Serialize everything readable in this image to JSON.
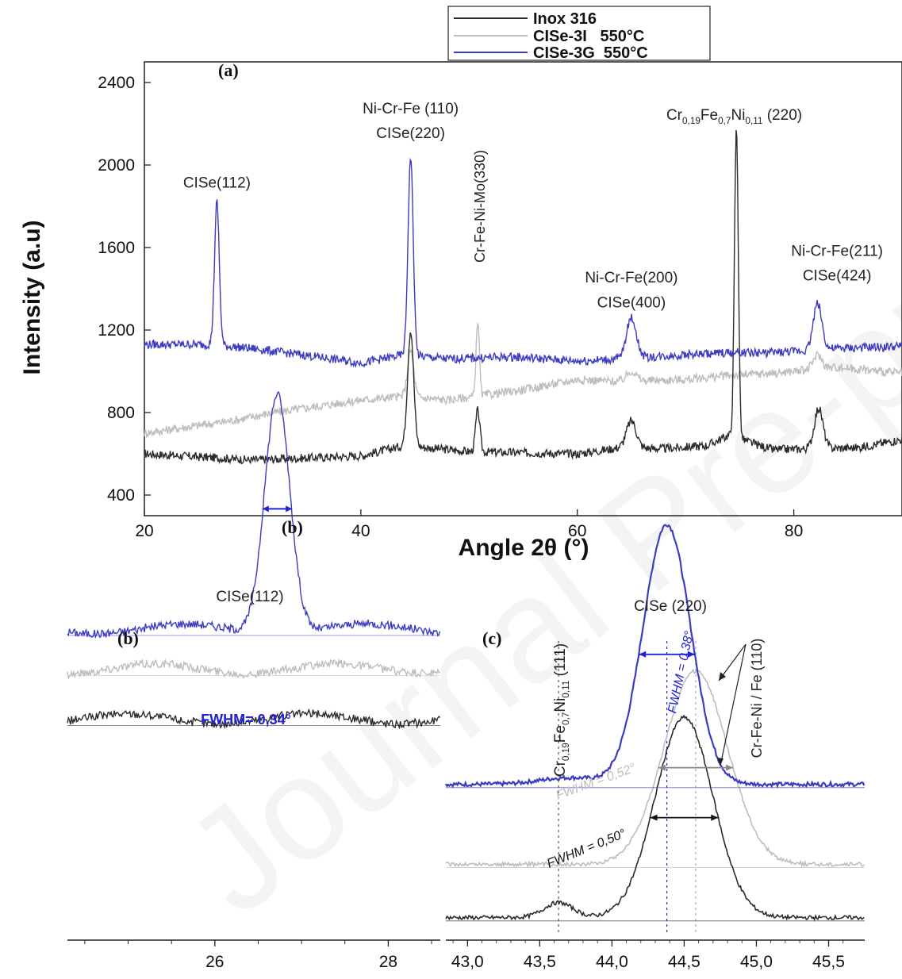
{
  "colors": {
    "inox": "#2b2b2b",
    "cise3i": "#bdbdbd",
    "cise3g": "#3c3cc0",
    "fwhm_blue": "#2222d6",
    "fwhm_gray": "#bdbdbd",
    "fwhm_black": "#111111"
  },
  "watermark": "Journal Pre-proof",
  "chart_data": [
    {
      "type": "line",
      "panel_label": "(a)",
      "xlabel": "Angle 2θ (°)",
      "ylabel": "Intensity (a.u)",
      "xlim": [
        20,
        90
      ],
      "ylim": [
        300,
        2500
      ],
      "xticks": [
        20,
        40,
        60,
        80
      ],
      "yticks": [
        400,
        800,
        1200,
        1600,
        2000,
        2400
      ],
      "legend": {
        "placement": "top-right",
        "entries": [
          "Inox 316",
          "CISe-3I   550°C",
          "CISe-3G  550°C"
        ]
      },
      "series": [
        {
          "name": "Inox 316",
          "color": "#2b2b2b",
          "baseline": [
            [
              20,
              600
            ],
            [
              30,
              570
            ],
            [
              40,
              590
            ],
            [
              44,
              640
            ],
            [
              50,
              610
            ],
            [
              60,
              600
            ],
            [
              64,
              630
            ],
            [
              68,
              625
            ],
            [
              72,
              640
            ],
            [
              74,
              690
            ],
            [
              78,
              620
            ],
            [
              86,
              630
            ],
            [
              90,
              670
            ]
          ],
          "peaks": [
            [
              44.6,
              1200,
              0.28
            ],
            [
              50.8,
              810,
              0.2
            ],
            [
              65.0,
              760,
              0.45
            ],
            [
              74.7,
              2180,
              0.18
            ],
            [
              82.3,
              820,
              0.4
            ]
          ]
        },
        {
          "name": "CISe-3I 550°C",
          "color": "#bdbdbd",
          "baseline": [
            [
              20,
              700
            ],
            [
              28,
              760
            ],
            [
              32,
              800
            ],
            [
              36,
              830
            ],
            [
              40,
              860
            ],
            [
              44,
              880
            ],
            [
              48,
              860
            ],
            [
              55,
              910
            ],
            [
              60,
              960
            ],
            [
              64,
              950
            ],
            [
              70,
              960
            ],
            [
              74,
              980
            ],
            [
              78,
              990
            ],
            [
              84,
              1020
            ],
            [
              90,
              990
            ]
          ],
          "peaks": [
            [
              44.6,
              1100,
              0.28
            ],
            [
              50.8,
              1250,
              0.15
            ],
            [
              65.0,
              1000,
              0.45
            ],
            [
              82.2,
              1080,
              0.4
            ]
          ]
        },
        {
          "name": "CISe-3G 550°C",
          "color": "#3c3cc0",
          "baseline": [
            [
              20,
              1130
            ],
            [
              26,
              1130
            ],
            [
              30,
              1110
            ],
            [
              36,
              1070
            ],
            [
              40,
              1040
            ],
            [
              44,
              1080
            ],
            [
              48,
              1060
            ],
            [
              54,
              1070
            ],
            [
              60,
              1050
            ],
            [
              64,
              1060
            ],
            [
              70,
              1080
            ],
            [
              74,
              1090
            ],
            [
              78,
              1090
            ],
            [
              84,
              1110
            ],
            [
              90,
              1120
            ]
          ],
          "peaks": [
            [
              26.7,
              1820,
              0.22
            ],
            [
              44.6,
              2040,
              0.24
            ],
            [
              65.0,
              1260,
              0.45
            ],
            [
              82.2,
              1330,
              0.4
            ]
          ]
        }
      ],
      "annotations": [
        {
          "text": "CISe(112)",
          "x": 26.7,
          "y": 1890
        },
        {
          "text": "Ni-Cr-Fe (110)",
          "x": 44.6,
          "y": 2250
        },
        {
          "text": "CISe(220)",
          "x": 44.6,
          "y": 2130
        },
        {
          "text": "Cr-Fe-Ni-Mo(330)",
          "x": 51.0,
          "y": 1800,
          "rotation": -90
        },
        {
          "text": "Ni-Cr-Fe(200)",
          "x": 65.0,
          "y": 1430
        },
        {
          "text": "CISe(400)",
          "x": 65.0,
          "y": 1310
        },
        {
          "sub": [
            "Cr",
            "0,19",
            "Fe",
            "0,7",
            "Ni",
            "0,11",
            " (220)"
          ],
          "x": 74.5,
          "y": 2220
        },
        {
          "text": "Ni-Cr-Fe(211)",
          "x": 84.0,
          "y": 1560
        },
        {
          "text": "CISe(424)",
          "x": 84.0,
          "y": 1440
        }
      ]
    },
    {
      "type": "line",
      "panel_label": "(b)",
      "xlim": [
        24.3,
        28.6
      ],
      "xticks": [
        26,
        28
      ],
      "peak_label": "CISe(112)",
      "fwhm_label": "FWHM= 0,34°",
      "series": [
        {
          "name": "CISe-3G 550°C",
          "color": "#3c3cc0",
          "baseline": 0.22,
          "peak": [
            26.72,
            0.72,
            0.145
          ]
        },
        {
          "name": "CISe-3I 550°C",
          "color": "#bdbdbd",
          "baseline": 0.1,
          "peak": null
        },
        {
          "name": "Inox 316",
          "color": "#2b2b2b",
          "baseline": -0.05,
          "peak": null
        }
      ]
    },
    {
      "type": "line",
      "panel_label": "(c)",
      "xlim": [
        42.85,
        45.75
      ],
      "xticks": [
        "43,0",
        "43,5",
        "44,0",
        "44,5",
        "45,0",
        "45,5"
      ],
      "xtick_values": [
        43.0,
        43.5,
        44.0,
        44.5,
        45.0,
        45.5
      ],
      "peak_label": "CISe (220)",
      "left_label": {
        "sub": [
          "Cr",
          "0,19",
          "Fe",
          "0,7",
          "Ni",
          "0,11",
          " (111)"
        ]
      },
      "right_label": "Cr-Fe-Ni / Fe (110)",
      "fwhm_labels": [
        "FWHM = 0,38°",
        "FWHM = 0,52°",
        "FWHM = 0,50°"
      ],
      "series": [
        {
          "name": "CISe-3G 550°C",
          "color": "#3c3cc0",
          "baseline": 0.42,
          "peak": [
            44.38,
            0.78,
            0.165
          ]
        },
        {
          "name": "CISe-3I 550°C",
          "color": "#bdbdbd",
          "baseline": 0.18,
          "peak": [
            44.58,
            0.58,
            0.22
          ]
        },
        {
          "name": "Inox 316",
          "color": "#2b2b2b",
          "baseline": 0.02,
          "peak": [
            44.5,
            0.6,
            0.2
          ]
        }
      ]
    }
  ]
}
